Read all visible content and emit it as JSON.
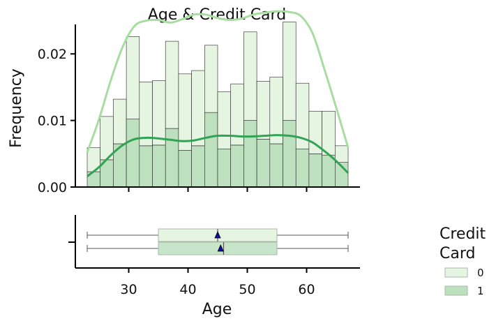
{
  "chart_data": {
    "type": "histogram-kde-boxplot",
    "title": "Age & Credit Card",
    "xlabel": "Age",
    "ylabel": "Frequency",
    "xlim": [
      21,
      69
    ],
    "ylim": [
      0,
      0.026
    ],
    "x_ticks": [
      30,
      40,
      50,
      60
    ],
    "y_ticks": [
      0.0,
      0.01,
      0.02
    ],
    "y_tick_labels": [
      "0.00",
      "0.01",
      "0.02"
    ],
    "bin_edges": [
      23,
      25.2,
      27.4,
      29.6,
      31.8,
      34,
      36.2,
      38.4,
      40.6,
      42.8,
      45,
      47.2,
      49.4,
      51.6,
      53.8,
      56,
      58.2,
      60.4,
      62.6,
      64.8,
      67
    ],
    "stacked": true,
    "legend": {
      "title": "Credit Card",
      "title_lines": [
        "Credit",
        "Card"
      ],
      "entries": [
        "0",
        "1"
      ],
      "placement": "right"
    },
    "series": [
      {
        "name": "0",
        "color": "#e6f4e2",
        "line_color": "#a8dca0",
        "hist_values": [
          0.0036,
          0.0065,
          0.0067,
          0.0124,
          0.0096,
          0.0097,
          0.0131,
          0.0115,
          0.0113,
          0.0101,
          0.0086,
          0.0092,
          0.0133,
          0.0087,
          0.01,
          0.0148,
          0.0099,
          0.0064,
          0.0066,
          0.0025
        ],
        "kde_x": [
          23,
          25,
          27,
          29,
          31,
          33,
          35,
          37,
          39,
          41,
          43,
          45,
          47,
          49,
          51,
          53,
          55,
          57,
          59,
          61,
          63,
          65,
          67
        ],
        "kde_y": [
          0.0036,
          0.0072,
          0.0113,
          0.0148,
          0.017,
          0.0176,
          0.0178,
          0.0176,
          0.0183,
          0.0189,
          0.0185,
          0.0177,
          0.0174,
          0.0177,
          0.0183,
          0.0185,
          0.0186,
          0.0186,
          0.0183,
          0.0164,
          0.0123,
          0.008,
          0.0038
        ],
        "box": {
          "min": 23,
          "q1": 35,
          "median": 45,
          "q3": 55,
          "max": 67,
          "mean": 45
        }
      },
      {
        "name": "1",
        "color": "#bde0be",
        "line_color": "#31a354",
        "hist_values": [
          0.0023,
          0.0041,
          0.0065,
          0.0102,
          0.0062,
          0.0063,
          0.0088,
          0.0055,
          0.0062,
          0.0112,
          0.0057,
          0.0063,
          0.01,
          0.0072,
          0.0065,
          0.01,
          0.0057,
          0.005,
          0.0048,
          0.0037
        ],
        "kde_x": [
          23,
          25,
          27,
          29,
          31,
          33,
          35,
          37,
          39,
          41,
          43,
          45,
          47,
          49,
          51,
          53,
          55,
          57,
          59,
          61,
          63,
          65,
          67
        ],
        "kde_y": [
          0.0016,
          0.003,
          0.0048,
          0.0063,
          0.0072,
          0.0074,
          0.0073,
          0.0071,
          0.0069,
          0.007,
          0.0074,
          0.0077,
          0.0077,
          0.0076,
          0.0076,
          0.0077,
          0.0078,
          0.0077,
          0.0074,
          0.0067,
          0.0054,
          0.0039,
          0.0021
        ],
        "box": {
          "min": 23,
          "q1": 35,
          "median": 46,
          "q3": 55,
          "max": 67,
          "mean": 45.5
        }
      }
    ],
    "mean_marker_color": "#1010a0"
  }
}
